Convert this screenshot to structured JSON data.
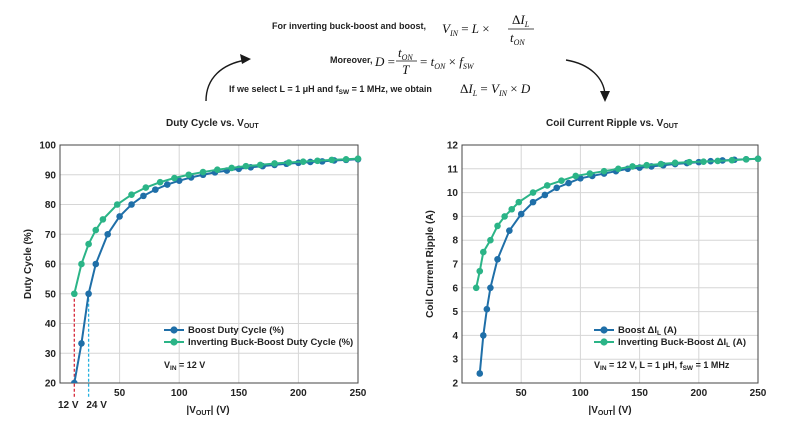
{
  "equations": {
    "line1_text": "For inverting buck-boost and boost,",
    "line2_text": "Moreover,",
    "line3_text": "If we select L = 1 μH and f",
    "line3_sub": "SW",
    "line3_text2": " = 1 MHz, we obtain"
  },
  "colors": {
    "boost": "#1f6fa8",
    "inverting": "#2bb487",
    "marker12": "#d62839",
    "marker24": "#27b2e0",
    "arrow": "#1a1a1a"
  },
  "chart_data": [
    {
      "type": "line",
      "title": "Duty Cycle vs. V",
      "title_sub": "OUT",
      "xlabel": "|V",
      "xlabel_sub": "OUT",
      "xlabel_tail": "| (V)",
      "ylabel": "Duty Cycle (%)",
      "xlim": [
        0,
        250
      ],
      "ylim": [
        20,
        100
      ],
      "xticks": [
        0,
        50,
        100,
        150,
        200,
        250
      ],
      "yticks": [
        20,
        30,
        40,
        50,
        60,
        70,
        80,
        90,
        100
      ],
      "grid": true,
      "legend_position": "lower-right",
      "series": [
        {
          "name": "Boost Duty Cycle (%)",
          "color": "#1f6fa8",
          "x": [
            12,
            18,
            24,
            30,
            40,
            50,
            60,
            70,
            80,
            90,
            100,
            110,
            120,
            130,
            140,
            150,
            160,
            170,
            180,
            190,
            200,
            210,
            220,
            230,
            240,
            250
          ],
          "y": [
            0,
            33.3,
            50,
            60,
            70,
            76,
            80,
            82.9,
            85,
            86.7,
            88,
            89.1,
            90,
            90.8,
            91.4,
            92,
            92.5,
            92.9,
            93.3,
            93.7,
            94,
            94.3,
            94.5,
            94.8,
            95,
            95.2
          ]
        },
        {
          "name": "Inverting Buck-Boost Duty Cycle (%)",
          "color": "#2bb487",
          "x": [
            12,
            18,
            24,
            30,
            36,
            48,
            60,
            72,
            84,
            96,
            108,
            120,
            132,
            144,
            156,
            168,
            180,
            192,
            204,
            216,
            228,
            240,
            250
          ],
          "y": [
            50,
            60,
            66.7,
            71.4,
            75,
            80,
            83.3,
            85.7,
            87.5,
            88.9,
            90,
            90.9,
            91.7,
            92.3,
            92.9,
            93.3,
            93.8,
            94.1,
            94.4,
            94.7,
            95,
            95.2,
            95.4
          ]
        }
      ],
      "annotations": {
        "vin": "V",
        "vin_sub": "IN",
        "vin_tail": " = 12 V",
        "marker_12": "12 V",
        "marker_24": "24 V"
      }
    },
    {
      "type": "line",
      "title": "Coil Current Ripple vs. V",
      "title_sub": "OUT",
      "xlabel": "|V",
      "xlabel_sub": "OUT",
      "xlabel_tail": "| (V)",
      "ylabel": "Coil Current Ripple (A)",
      "xlim": [
        0,
        250
      ],
      "ylim": [
        2,
        12
      ],
      "xticks": [
        0,
        50,
        100,
        150,
        200,
        250
      ],
      "yticks": [
        2,
        3,
        4,
        5,
        6,
        7,
        8,
        9,
        10,
        11,
        12
      ],
      "grid": true,
      "legend_position": "lower-right",
      "series": [
        {
          "name": "Boost ΔI",
          "name_sub": "L",
          "name_tail": " (A)",
          "color": "#1f6fa8",
          "x": [
            15,
            18,
            21,
            24,
            30,
            40,
            50,
            60,
            70,
            80,
            90,
            100,
            110,
            120,
            130,
            140,
            150,
            160,
            170,
            180,
            190,
            200,
            210,
            220,
            230,
            240,
            250
          ],
          "y": [
            2.4,
            4,
            5.1,
            6,
            7.2,
            8.4,
            9.1,
            9.6,
            9.9,
            10.2,
            10.4,
            10.6,
            10.7,
            10.8,
            10.9,
            11,
            11.05,
            11.1,
            11.15,
            11.2,
            11.24,
            11.28,
            11.32,
            11.35,
            11.38,
            11.4,
            11.42
          ]
        },
        {
          "name": "Inverting Buck-Boost ΔI",
          "name_sub": "L",
          "name_tail": " (A)",
          "color": "#2bb487",
          "x": [
            12,
            15,
            18,
            24,
            30,
            36,
            42,
            48,
            60,
            72,
            84,
            96,
            108,
            120,
            132,
            144,
            156,
            168,
            180,
            192,
            204,
            216,
            228,
            240,
            250
          ],
          "y": [
            6,
            6.7,
            7.5,
            8,
            8.6,
            9.0,
            9.3,
            9.6,
            10,
            10.3,
            10.5,
            10.7,
            10.8,
            10.9,
            11.0,
            11.1,
            11.15,
            11.2,
            11.25,
            11.28,
            11.3,
            11.33,
            11.36,
            11.4,
            11.42
          ]
        }
      ],
      "annotations": {
        "note_a": "V",
        "note_a_sub": "IN",
        "note_b": " = 12 V, L = 1 μH, f",
        "note_b_sub": "SW",
        "note_c": " = 1 MHz"
      }
    }
  ]
}
